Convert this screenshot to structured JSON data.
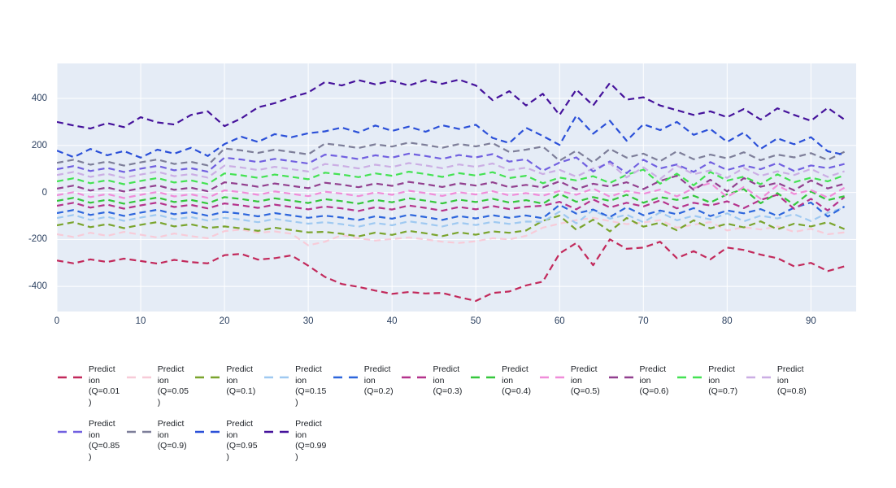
{
  "chart_data": {
    "type": "line",
    "title": "",
    "xlabel": "",
    "ylabel": "",
    "line_style": "dashed",
    "grid": true,
    "plot_background": "#E5ECF6",
    "grid_color": "#ffffff",
    "tick_color": "#2a3f5f",
    "legend_position": "bottom",
    "x_range": [
      0,
      95.4
    ],
    "y_range": [
      -507,
      549
    ],
    "x_ticks": [
      0,
      10,
      20,
      30,
      40,
      50,
      60,
      70,
      80,
      90
    ],
    "y_ticks": [
      -400,
      -200,
      0,
      200,
      400
    ],
    "x": [
      0,
      2,
      4,
      6,
      8,
      10,
      12,
      14,
      16,
      18,
      20,
      22,
      24,
      26,
      28,
      30,
      32,
      34,
      36,
      38,
      40,
      42,
      44,
      46,
      48,
      50,
      52,
      54,
      56,
      58,
      60,
      62,
      64,
      66,
      68,
      70,
      72,
      74,
      76,
      78,
      80,
      82,
      84,
      86,
      88,
      90,
      92,
      94
    ],
    "series": [
      {
        "name": "Prediction (Q=0.01)",
        "label_lines": [
          "Predict",
          "ion",
          "(Q=0.01",
          ")"
        ],
        "color": "#C2295B",
        "values": [
          -290,
          -302,
          -285,
          -296,
          -282,
          -292,
          -303,
          -287,
          -297,
          -302,
          -267,
          -262,
          -286,
          -280,
          -268,
          -312,
          -360,
          -390,
          -402,
          -418,
          -432,
          -424,
          -430,
          -428,
          -446,
          -462,
          -428,
          -422,
          -396,
          -380,
          -260,
          -215,
          -310,
          -200,
          -240,
          -235,
          -210,
          -280,
          -250,
          -285,
          -235,
          -245,
          -265,
          -280,
          -315,
          -300,
          -335,
          -315
        ]
      },
      {
        "name": "Prediction (Q=0.05)",
        "label_lines": [
          "Predict",
          "ion",
          "(Q=0.05",
          ")"
        ],
        "color": "#F7CBD8",
        "values": [
          -178,
          -190,
          -172,
          -185,
          -168,
          -180,
          -192,
          -175,
          -186,
          -195,
          -165,
          -158,
          -172,
          -166,
          -176,
          -225,
          -210,
          -182,
          -195,
          -205,
          -198,
          -192,
          -200,
          -210,
          -215,
          -208,
          -195,
          -200,
          -185,
          -150,
          -133,
          -118,
          -108,
          -122,
          -135,
          -128,
          -118,
          -150,
          -138,
          -126,
          -162,
          -148,
          -158,
          -145,
          -168,
          -155,
          -178,
          -170
        ]
      },
      {
        "name": "Prediction (Q=0.1)",
        "label_lines": [
          "Predict",
          "ion",
          "(Q=0.1)"
        ],
        "color": "#7AA42D",
        "values": [
          -140,
          -127,
          -148,
          -135,
          -152,
          -138,
          -126,
          -145,
          -136,
          -151,
          -145,
          -153,
          -164,
          -150,
          -160,
          -170,
          -168,
          -176,
          -187,
          -171,
          -181,
          -164,
          -174,
          -186,
          -170,
          -180,
          -166,
          -172,
          -162,
          -121,
          -99,
          -159,
          -116,
          -166,
          -109,
          -146,
          -129,
          -161,
          -119,
          -153,
          -133,
          -149,
          -123,
          -157,
          -133,
          -145,
          -127,
          -156
        ]
      },
      {
        "name": "Prediction (Q=0.15)",
        "label_lines": [
          "Predict",
          "ion",
          "(Q=0.15",
          ")"
        ],
        "color": "#9FC9F1",
        "values": [
          -109,
          -96,
          -117,
          -104,
          -121,
          -107,
          -95,
          -114,
          -105,
          -120,
          -108,
          -116,
          -127,
          -113,
          -123,
          -133,
          -127,
          -135,
          -146,
          -130,
          -140,
          -123,
          -133,
          -145,
          -129,
          -139,
          -125,
          -134,
          -124,
          -125,
          -82,
          -132,
          -75,
          -112,
          -95,
          -127,
          -85,
          -119,
          -99,
          -115,
          -89,
          -123,
          -99,
          -111,
          -93,
          -122,
          -87,
          -65
        ]
      },
      {
        "name": "Prediction (Q=0.2)",
        "label_lines": [
          "Predict",
          "ion",
          "(Q=0.2)"
        ],
        "color": "#2D66DC",
        "values": [
          -88,
          -75,
          -96,
          -83,
          -100,
          -86,
          -74,
          -93,
          -84,
          -99,
          -83,
          -91,
          -102,
          -88,
          -98,
          -108,
          -99,
          -107,
          -118,
          -102,
          -112,
          -95,
          -105,
          -117,
          -101,
          -111,
          -97,
          -108,
          -98,
          -110,
          -53,
          -90,
          -73,
          -105,
          -63,
          -97,
          -77,
          -93,
          -67,
          -101,
          -77,
          -89,
          -71,
          -100,
          -65,
          -43,
          -103,
          -60
        ]
      },
      {
        "name": "Prediction (Q=0.3)",
        "label_lines": [
          "Predict",
          "ion",
          "(Q=0.3)"
        ],
        "color": "#B5338C",
        "values": [
          -57,
          -44,
          -65,
          -52,
          -69,
          -55,
          -43,
          -62,
          -53,
          -68,
          -47,
          -55,
          -66,
          -52,
          -62,
          -72,
          -60,
          -68,
          -79,
          -63,
          -73,
          -56,
          -66,
          -78,
          -62,
          -72,
          -58,
          -71,
          -61,
          -57,
          -40,
          -72,
          -30,
          -64,
          -44,
          -60,
          -34,
          -68,
          -44,
          -56,
          -38,
          -67,
          -32,
          -10,
          -70,
          -27,
          -77,
          -20
        ]
      },
      {
        "name": "Prediction (Q=0.4)",
        "label_lines": [
          "Predict",
          "ion",
          "(Q=0.4)"
        ],
        "color": "#35C73C",
        "values": [
          -36,
          -23,
          -44,
          -31,
          -48,
          -34,
          -22,
          -41,
          -32,
          -47,
          -20,
          -28,
          -39,
          -25,
          -35,
          -45,
          -29,
          -37,
          -48,
          -32,
          -42,
          -25,
          -35,
          -47,
          -31,
          -41,
          -27,
          -43,
          -33,
          -48,
          -6,
          -40,
          -20,
          -36,
          -10,
          -44,
          -20,
          -32,
          -14,
          -43,
          -8,
          14,
          -46,
          -3,
          -53,
          4,
          -33,
          -16
        ]
      },
      {
        "name": "Prediction (Q=0.5)",
        "label_lines": [
          "Predict",
          "ion",
          "(Q=0.5)"
        ],
        "color": "#F08CD9",
        "values": [
          -12,
          1,
          -20,
          -7,
          -24,
          -10,
          2,
          -17,
          -8,
          -23,
          9,
          1,
          -10,
          4,
          -6,
          -16,
          3,
          -5,
          -16,
          0,
          -10,
          7,
          -3,
          -15,
          1,
          -9,
          5,
          -13,
          -3,
          -14,
          6,
          -10,
          16,
          -18,
          6,
          -6,
          12,
          -17,
          18,
          40,
          -20,
          23,
          -27,
          30,
          -7,
          10,
          -22,
          20
        ]
      },
      {
        "name": "Prediction (Q=0.6)",
        "label_lines": [
          "Predict",
          "ion",
          "(Q=0.6)"
        ],
        "color": "#92408F",
        "values": [
          16,
          29,
          8,
          21,
          4,
          18,
          30,
          11,
          20,
          5,
          43,
          35,
          24,
          38,
          28,
          18,
          41,
          33,
          22,
          38,
          28,
          45,
          35,
          23,
          39,
          29,
          43,
          22,
          32,
          21,
          47,
          13,
          37,
          25,
          43,
          14,
          49,
          71,
          11,
          54,
          4,
          61,
          24,
          41,
          9,
          51,
          17,
          37
        ]
      },
      {
        "name": "Prediction (Q=0.7)",
        "label_lines": [
          "Predict",
          "ion",
          "(Q=0.7)"
        ],
        "color": "#44E253",
        "values": [
          47,
          60,
          39,
          52,
          35,
          49,
          61,
          42,
          51,
          36,
          81,
          73,
          62,
          76,
          66,
          56,
          84,
          76,
          65,
          81,
          71,
          88,
          78,
          66,
          82,
          72,
          86,
          61,
          71,
          39,
          63,
          51,
          69,
          40,
          75,
          97,
          37,
          80,
          30,
          87,
          50,
          67,
          35,
          77,
          43,
          63,
          47,
          73
        ]
      },
      {
        "name": "Prediction (Q=0.8)",
        "label_lines": [
          "Predict",
          "ion",
          "(Q=0.8)"
        ],
        "color": "#CBAEE4",
        "values": [
          74,
          87,
          66,
          79,
          62,
          76,
          88,
          69,
          78,
          63,
          114,
          106,
          95,
          109,
          99,
          89,
          121,
          113,
          102,
          118,
          108,
          125,
          115,
          103,
          119,
          109,
          123,
          95,
          105,
          78,
          96,
          67,
          102,
          124,
          64,
          107,
          57,
          114,
          77,
          94,
          62,
          104,
          70,
          90,
          74,
          100,
          66,
          90
        ]
      },
      {
        "name": "Prediction (Q=0.85)",
        "label_lines": [
          "Predict",
          "ion",
          "(Q=0.85",
          ")"
        ],
        "color": "#7160E0",
        "values": [
          99,
          112,
          91,
          104,
          87,
          101,
          113,
          94,
          103,
          88,
          148,
          140,
          129,
          143,
          133,
          123,
          161,
          153,
          142,
          158,
          148,
          165,
          155,
          143,
          159,
          149,
          163,
          131,
          141,
          92,
          127,
          149,
          89,
          132,
          82,
          139,
          102,
          119,
          87,
          129,
          95,
          115,
          99,
          125,
          91,
          115,
          103,
          121
        ]
      },
      {
        "name": "Prediction (Q=0.9)",
        "label_lines": [
          "Predict",
          "ion",
          "(Q=0.9)"
        ],
        "color": "#7D7E99",
        "values": [
          126,
          139,
          118,
          131,
          114,
          128,
          140,
          121,
          130,
          115,
          187,
          179,
          168,
          182,
          172,
          162,
          208,
          200,
          189,
          205,
          195,
          212,
          202,
          190,
          206,
          196,
          210,
          172,
          182,
          195,
          135,
          178,
          128,
          185,
          148,
          165,
          133,
          175,
          141,
          161,
          145,
          171,
          137,
          161,
          149,
          167,
          138,
          173
        ]
      },
      {
        "name": "Prediction (Q=0.95)",
        "label_lines": [
          "Predict",
          "ion",
          "(Q=0.95",
          ")"
        ],
        "color": "#2B50D8",
        "values": [
          178,
          150,
          185,
          158,
          176,
          148,
          182,
          165,
          190,
          155,
          206,
          237,
          215,
          248,
          235,
          252,
          260,
          276,
          255,
          285,
          262,
          280,
          258,
          286,
          270,
          288,
          232,
          210,
          275,
          240,
          202,
          327,
          250,
          305,
          220,
          290,
          265,
          300,
          245,
          270,
          215,
          255,
          185,
          230,
          205,
          235,
          175,
          160
        ]
      },
      {
        "name": "Prediction (Q=0.99)",
        "label_lines": [
          "Predict",
          "ion",
          "(Q=0.99",
          ")"
        ],
        "color": "#45129B",
        "values": [
          300,
          285,
          272,
          295,
          278,
          320,
          298,
          289,
          330,
          345,
          282,
          315,
          362,
          380,
          405,
          425,
          470,
          455,
          478,
          460,
          475,
          455,
          478,
          462,
          480,
          455,
          393,
          431,
          370,
          420,
          330,
          438,
          370,
          466,
          395,
          405,
          370,
          350,
          330,
          345,
          320,
          355,
          310,
          358,
          330,
          305,
          360,
          310
        ]
      }
    ],
    "legend_rows": [
      [
        0,
        1,
        2,
        3,
        4,
        5,
        6,
        7,
        8,
        9,
        10
      ],
      [
        11,
        12,
        13,
        14
      ]
    ]
  }
}
